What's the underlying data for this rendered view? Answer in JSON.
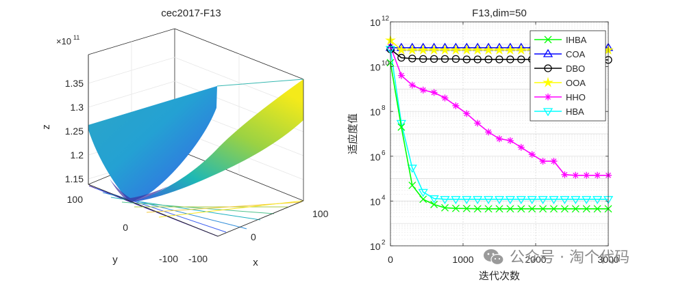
{
  "left_plot": {
    "title": "cec2017-F13",
    "zlabel": "z",
    "xlabel": "x",
    "ylabel": "y",
    "exponent_label": "×10",
    "exponent_value": "11",
    "z_ticks": [
      "1.35",
      "1.3",
      "1.25",
      "1.2",
      "1.15"
    ],
    "x_ticks": [
      "-100",
      "0",
      "100"
    ],
    "y_ticks": [
      "100",
      "0",
      "-100"
    ]
  },
  "chart_data": {
    "type": "line",
    "title": "F13,dim=50",
    "xlabel": "迭代次数",
    "ylabel": "适应度值",
    "yscale": "log",
    "xlim": [
      0,
      3000
    ],
    "ylim": [
      100,
      1000000000000
    ],
    "grid": true,
    "legend_position": "top-right",
    "x_ticks": [
      "0",
      "1000",
      "2000",
      "3000"
    ],
    "y_tick_base": "10",
    "y_tick_exponents": [
      "2",
      "4",
      "6",
      "8",
      "10",
      "12"
    ],
    "x": [
      0,
      150,
      300,
      450,
      600,
      750,
      900,
      1050,
      1200,
      1350,
      1500,
      1650,
      1800,
      1950,
      2100,
      2250,
      2400,
      2550,
      2700,
      2850,
      3000
    ],
    "series": [
      {
        "name": "IHBA",
        "color": "#00ff00",
        "marker": "x",
        "values": [
          15000000000.0,
          20000000.0,
          50000.0,
          12000.0,
          7000,
          5000,
          4700,
          4600,
          4500,
          4500,
          4500,
          4500,
          4500,
          4500,
          4500,
          4500,
          4500,
          4500,
          4500,
          4500,
          4500
        ]
      },
      {
        "name": "COA",
        "color": "#0000ff",
        "marker": "triangle",
        "values": [
          70000000000.0,
          70000000000.0,
          70000000000.0,
          70000000000.0,
          70000000000.0,
          70000000000.0,
          70000000000.0,
          70000000000.0,
          70000000000.0,
          70000000000.0,
          70000000000.0,
          70000000000.0,
          70000000000.0,
          70000000000.0,
          70000000000.0,
          70000000000.0,
          70000000000.0,
          70000000000.0,
          70000000000.0,
          70000000000.0,
          70000000000.0
        ]
      },
      {
        "name": "DBO",
        "color": "#000000",
        "marker": "circle",
        "values": [
          60000000000.0,
          25000000000.0,
          23000000000.0,
          22000000000.0,
          22000000000.0,
          22000000000.0,
          22000000000.0,
          21000000000.0,
          21000000000.0,
          21000000000.0,
          21000000000.0,
          21000000000.0,
          21000000000.0,
          21000000000.0,
          21000000000.0,
          21000000000.0,
          21000000000.0,
          21000000000.0,
          20000000000.0,
          20000000000.0,
          20000000000.0
        ]
      },
      {
        "name": "OOA",
        "color": "#ffff00",
        "marker": "star",
        "values": [
          150000000000.0,
          55000000000.0,
          55000000000.0,
          55000000000.0,
          55000000000.0,
          55000000000.0,
          55000000000.0,
          55000000000.0,
          55000000000.0,
          55000000000.0,
          55000000000.0,
          55000000000.0,
          55000000000.0,
          55000000000.0,
          55000000000.0,
          55000000000.0,
          55000000000.0,
          55000000000.0,
          55000000000.0,
          55000000000.0,
          55000000000.0
        ]
      },
      {
        "name": "HHO",
        "color": "#ff00ff",
        "marker": "asterisk",
        "values": [
          80000000000.0,
          4000000000.0,
          1500000000.0,
          900000000.0,
          700000000.0,
          400000000.0,
          180000000.0,
          80000000.0,
          30000000.0,
          12000000.0,
          6000000.0,
          5000000.0,
          2500000.0,
          1200000.0,
          600000.0,
          600000.0,
          150000.0,
          140000.0,
          140000.0,
          140000.0,
          140000.0
        ]
      },
      {
        "name": "HBA",
        "color": "#00ffff",
        "marker": "triangle-down",
        "values": [
          60000000000.0,
          30000000.0,
          300000.0,
          25000.0,
          13000.0,
          12000.0,
          12000.0,
          12000.0,
          12000.0,
          12000.0,
          12000.0,
          12000.0,
          12000.0,
          12000.0,
          12000.0,
          12000.0,
          12000.0,
          12000.0,
          12000.0,
          12000.0,
          12000.0
        ]
      }
    ]
  },
  "watermark": {
    "text": "公众号 · 淘个代码"
  }
}
